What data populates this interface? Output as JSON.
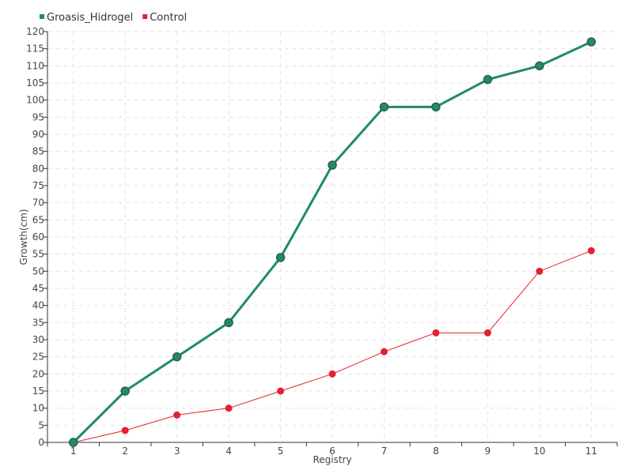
{
  "chart_data": {
    "type": "line",
    "title": "",
    "xlabel": "Registry",
    "ylabel": "Growth(cm)",
    "categories": [
      "1",
      "2",
      "3",
      "4",
      "5",
      "6",
      "7",
      "8",
      "9",
      "10",
      "11"
    ],
    "ylim": [
      0,
      120
    ],
    "ytick_step": 5,
    "grid": true,
    "legend_position": "top-left",
    "series": [
      {
        "name": "Groasis_Hidrogel",
        "color": "#1f8a6f",
        "values": [
          0,
          15,
          25,
          35,
          54,
          81,
          98,
          98,
          106,
          110,
          117
        ]
      },
      {
        "name": "Control",
        "color": "#e3202f",
        "values": [
          0,
          3.5,
          8,
          10,
          15,
          20,
          26.5,
          32,
          32,
          50,
          56
        ]
      }
    ]
  }
}
